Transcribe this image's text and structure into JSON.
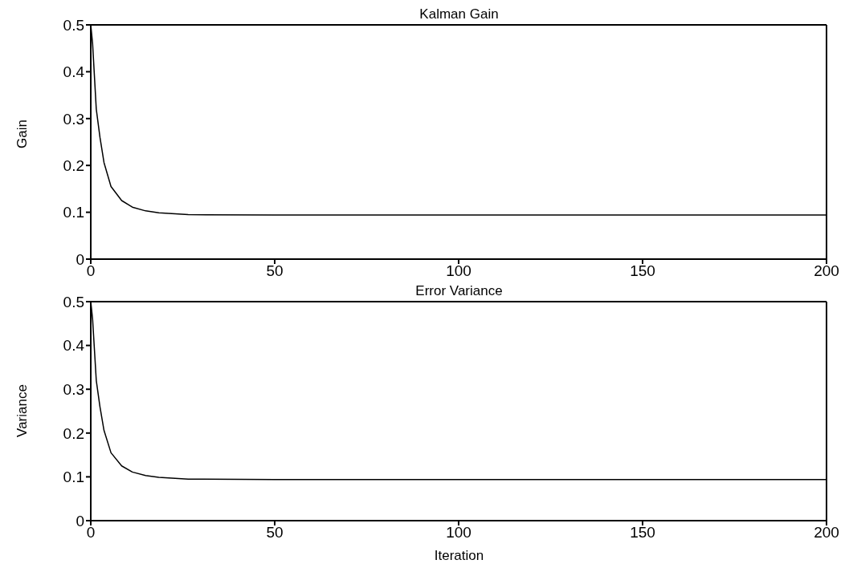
{
  "chart_data": [
    {
      "type": "line",
      "title": "Kalman Gain",
      "ylabel": "Gain",
      "x": [
        0,
        0.5,
        1.5,
        2.5,
        3.6,
        5.5,
        8.4,
        11.3,
        14.9,
        18.5,
        26.5,
        50,
        100,
        150,
        200
      ],
      "values": [
        0.5,
        0.46,
        0.32,
        0.26,
        0.206,
        0.155,
        0.125,
        0.111,
        0.103,
        0.099,
        0.095,
        0.094,
        0.094,
        0.094,
        0.094
      ],
      "color": "#000000",
      "xlim": [
        0,
        200
      ],
      "xticks": [
        0,
        50,
        100,
        150,
        200
      ],
      "ylim": [
        0,
        0.5
      ],
      "yticks": [
        0,
        0.1,
        0.2,
        0.3,
        0.4,
        0.5
      ],
      "grid": false,
      "legend": false,
      "marker": "none",
      "line_style": "solid"
    },
    {
      "type": "line",
      "title": "Error Variance",
      "xlabel": "Iteration",
      "ylabel": "Variance",
      "x": [
        0,
        0.5,
        1.5,
        2.5,
        3.6,
        5.5,
        8.4,
        11.3,
        14.9,
        18.5,
        26.5,
        50,
        100,
        150,
        200
      ],
      "values": [
        0.5,
        0.46,
        0.32,
        0.26,
        0.206,
        0.155,
        0.125,
        0.111,
        0.103,
        0.099,
        0.095,
        0.094,
        0.094,
        0.094,
        0.094
      ],
      "color": "#000000",
      "xlim": [
        0,
        200
      ],
      "xticks": [
        0,
        50,
        100,
        150,
        200
      ],
      "ylim": [
        0,
        0.5
      ],
      "yticks": [
        0,
        0.1,
        0.2,
        0.3,
        0.4,
        0.5
      ],
      "grid": false,
      "legend": false,
      "marker": "none",
      "line_style": "solid"
    }
  ]
}
